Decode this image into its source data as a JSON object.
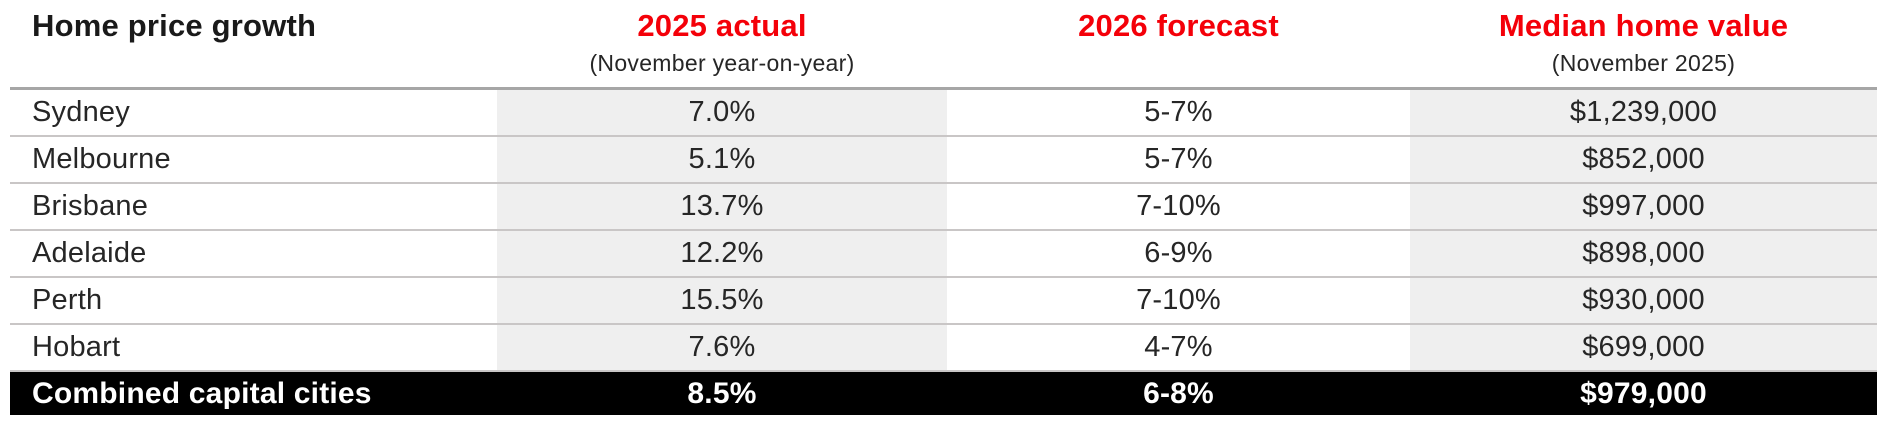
{
  "chart_data": {
    "type": "table",
    "title": "Home price growth",
    "columns": [
      {
        "title": "Home price growth",
        "subtitle": ""
      },
      {
        "title": "2025 actual",
        "subtitle": "(November year-on-year)"
      },
      {
        "title": "2026 forecast",
        "subtitle": ""
      },
      {
        "title": "Median home value",
        "subtitle": "(November 2025)"
      }
    ],
    "rows": [
      {
        "city": "Sydney",
        "actual_2025": "7.0%",
        "forecast_2026": "5-7%",
        "median_value": "$1,239,000"
      },
      {
        "city": "Melbourne",
        "actual_2025": "5.1%",
        "forecast_2026": "5-7%",
        "median_value": "$852,000"
      },
      {
        "city": "Brisbane",
        "actual_2025": "13.7%",
        "forecast_2026": "7-10%",
        "median_value": "$997,000"
      },
      {
        "city": "Adelaide",
        "actual_2025": "12.2%",
        "forecast_2026": "6-9%",
        "median_value": "$898,000"
      },
      {
        "city": "Perth",
        "actual_2025": "15.5%",
        "forecast_2026": "7-10%",
        "median_value": "$930,000"
      },
      {
        "city": "Hobart",
        "actual_2025": "7.6%",
        "forecast_2026": "4-7%",
        "median_value": "$699,000"
      }
    ],
    "footer": {
      "label": "Combined capital cities",
      "actual_2025": "8.5%",
      "forecast_2026": "6-8%",
      "median_value": "$979,000"
    },
    "layout": {
      "shaded_columns": [
        "2025 actual",
        "Median home value"
      ],
      "footer_style": "inverted-black"
    }
  },
  "colors": {
    "accent_red": "#f40009",
    "text": "#262626",
    "shaded_column_bg": "#efefef",
    "header_rule": "#a6a6a6",
    "row_rule": "#c9c6c6",
    "footer_bg": "#000000",
    "footer_text": "#ffffff"
  }
}
